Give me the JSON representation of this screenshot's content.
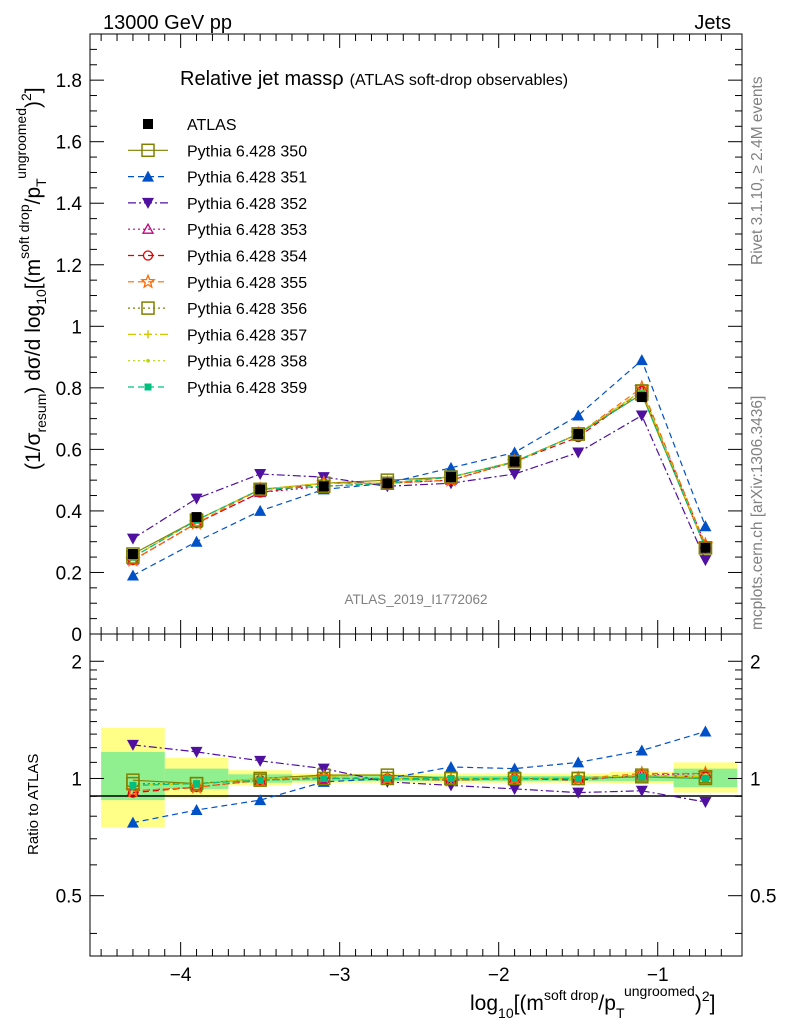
{
  "header": {
    "left": "13000 GeV pp",
    "right": "Jets"
  },
  "side_labels": {
    "rivet": "Rivet 3.1.10, ≥ 2.4M events",
    "mcplots": "mcplots.cern.ch [arXiv:1306.3436]"
  },
  "analysis_id": "ATLAS_2019_I1772062",
  "chart_data": [
    {
      "type": "line",
      "title": "Relative jet massρ",
      "subtitle": "(ATLAS soft-drop observables)",
      "ylabel": {
        "main": "(1/σ",
        "sub1": "resum",
        "mid": ") dσ/d log",
        "sub2": "10",
        "rest": "[(m",
        "sup1": "soft drop",
        "mid2": "/p",
        "sub3": "T",
        "sup2": "ungroomed",
        "end": ")",
        "sup3": "2",
        "close": "]"
      },
      "xlabel": {
        "main": "log",
        "sub": "10",
        "rest": "[(m",
        "sup1": "soft drop",
        "mid": "/p",
        "sub2": "T",
        "sup2": "ungroomed",
        "end": ")",
        "sup3": "2",
        "close": "]"
      },
      "xlim": [
        -4.57,
        -0.47
      ],
      "ylim": [
        0,
        1.95
      ],
      "yticks": [
        0,
        0.2,
        0.4,
        0.6,
        0.8,
        1,
        1.2,
        1.4,
        1.6,
        1.8
      ],
      "ytick_labels": [
        "0",
        "0.2",
        "0.4",
        "0.6",
        "0.8",
        "1",
        "1.2",
        "1.4",
        "1.6",
        "1.8"
      ],
      "x": [
        -4.3,
        -3.9,
        -3.5,
        -3.1,
        -2.7,
        -2.3,
        -1.9,
        -1.5,
        -1.1,
        -0.7
      ],
      "data": {
        "name": "ATLAS",
        "values": [
          0.26,
          0.38,
          0.47,
          0.48,
          0.49,
          0.51,
          0.56,
          0.65,
          0.77,
          0.28
        ],
        "color": "#000000"
      },
      "series": [
        {
          "name": "Pythia 6.428 350",
          "color": "#808000",
          "marker": "square-open",
          "dash": "solid",
          "values": [
            0.26,
            0.37,
            0.47,
            0.49,
            0.5,
            0.51,
            0.56,
            0.65,
            0.78,
            0.28
          ]
        },
        {
          "name": "Pythia 6.428 351",
          "color": "#0050c8",
          "marker": "triangle-up",
          "dash": "dashed",
          "values": [
            0.19,
            0.3,
            0.4,
            0.47,
            0.49,
            0.54,
            0.59,
            0.71,
            0.89,
            0.35
          ]
        },
        {
          "name": "Pythia 6.428 352",
          "color": "#5010a0",
          "marker": "triangle-down",
          "dash": "dashdot",
          "values": [
            0.31,
            0.44,
            0.52,
            0.51,
            0.48,
            0.49,
            0.52,
            0.59,
            0.71,
            0.24
          ]
        },
        {
          "name": "Pythia 6.428 353",
          "color": "#c00080",
          "marker": "triangle-open",
          "dash": "dotted",
          "values": [
            0.24,
            0.36,
            0.46,
            0.48,
            0.49,
            0.5,
            0.56,
            0.65,
            0.79,
            0.29
          ]
        },
        {
          "name": "Pythia 6.428 354",
          "color": "#e00000",
          "marker": "circle-open",
          "dash": "dashed",
          "values": [
            0.24,
            0.36,
            0.46,
            0.49,
            0.49,
            0.5,
            0.56,
            0.64,
            0.79,
            0.28
          ]
        },
        {
          "name": "Pythia 6.428 355",
          "color": "#ff6a00",
          "marker": "star-open",
          "dash": "dashed",
          "values": [
            0.24,
            0.36,
            0.47,
            0.49,
            0.49,
            0.5,
            0.56,
            0.65,
            0.8,
            0.29
          ]
        },
        {
          "name": "Pythia 6.428 356",
          "color": "#808000",
          "marker": "square-open",
          "dash": "dotted",
          "values": [
            0.25,
            0.37,
            0.47,
            0.48,
            0.49,
            0.51,
            0.56,
            0.65,
            0.79,
            0.28
          ]
        },
        {
          "name": "Pythia 6.428 357",
          "color": "#d8c800",
          "marker": "cross",
          "dash": "dashdot",
          "values": [
            0.25,
            0.37,
            0.47,
            0.49,
            0.49,
            0.51,
            0.56,
            0.65,
            0.79,
            0.28
          ]
        },
        {
          "name": "Pythia 6.428 358",
          "color": "#b8d800",
          "marker": "dot",
          "dash": "dotted",
          "values": [
            0.25,
            0.37,
            0.47,
            0.49,
            0.49,
            0.51,
            0.56,
            0.65,
            0.79,
            0.28
          ]
        },
        {
          "name": "Pythia 6.428 359",
          "color": "#00c080",
          "marker": "square",
          "dash": "dashed",
          "values": [
            0.25,
            0.37,
            0.47,
            0.48,
            0.49,
            0.51,
            0.56,
            0.65,
            0.78,
            0.28
          ]
        }
      ]
    },
    {
      "type": "line",
      "ylabel": "Ratio to ATLAS",
      "xlim": [
        -4.57,
        -0.47
      ],
      "ylim": [
        0.35,
        2.35
      ],
      "log_y": true,
      "yticks": [
        0.5,
        1,
        2
      ],
      "ytick_labels": [
        "0.5",
        "1",
        "2"
      ],
      "xticks": [
        -4,
        -3,
        -2,
        -1
      ],
      "xtick_labels": [
        "−4",
        "−3",
        "−2",
        "−1"
      ],
      "band_edges": [
        -4.5,
        -4.1,
        -3.7,
        -3.3,
        -2.9,
        -2.5,
        -2.1,
        -1.7,
        -1.3,
        -0.9,
        -0.5
      ],
      "band_inner": [
        [
          0.88,
          1.17
        ],
        [
          0.94,
          1.06
        ],
        [
          0.975,
          1.025
        ],
        [
          0.985,
          1.015
        ],
        [
          0.985,
          1.015
        ],
        [
          0.985,
          1.015
        ],
        [
          0.985,
          1.015
        ],
        [
          0.985,
          1.015
        ],
        [
          0.985,
          1.015
        ],
        [
          0.95,
          1.06
        ]
      ],
      "band_outer": [
        [
          0.75,
          1.35
        ],
        [
          0.89,
          1.13
        ],
        [
          0.96,
          1.05
        ],
        [
          0.975,
          1.03
        ],
        [
          0.975,
          1.03
        ],
        [
          0.975,
          1.03
        ],
        [
          0.975,
          1.03
        ],
        [
          0.975,
          1.03
        ],
        [
          0.97,
          1.04
        ],
        [
          0.92,
          1.1
        ]
      ],
      "band_colors": {
        "inner": "#90f090",
        "outer": "#ffff88"
      },
      "series_ratios": [
        [
          0.99,
          0.97,
          1.0,
          1.02,
          1.02,
          1.0,
          1.0,
          1.0,
          1.01,
          1.0
        ],
        [
          0.77,
          0.83,
          0.88,
          0.98,
          1.0,
          1.07,
          1.06,
          1.1,
          1.18,
          1.32
        ],
        [
          1.22,
          1.17,
          1.11,
          1.06,
          0.98,
          0.96,
          0.94,
          0.92,
          0.93,
          0.87
        ],
        [
          0.93,
          0.95,
          0.99,
          1.0,
          1.0,
          0.99,
          1.0,
          1.0,
          1.02,
          1.03
        ],
        [
          0.92,
          0.95,
          0.99,
          1.01,
          1.0,
          0.99,
          1.0,
          0.99,
          1.02,
          1.01
        ],
        [
          0.93,
          0.95,
          0.99,
          1.01,
          1.0,
          0.99,
          1.0,
          1.0,
          1.03,
          1.03
        ],
        [
          0.97,
          0.97,
          0.99,
          1.0,
          1.0,
          1.0,
          1.0,
          1.0,
          1.02,
          1.01
        ],
        [
          0.96,
          0.97,
          1.0,
          1.01,
          1.0,
          1.0,
          1.0,
          1.0,
          1.02,
          1.01
        ],
        [
          0.96,
          0.97,
          1.0,
          1.01,
          1.0,
          1.0,
          1.0,
          1.0,
          1.02,
          1.01
        ],
        [
          0.96,
          0.97,
          0.99,
          1.0,
          1.0,
          1.0,
          1.0,
          1.0,
          1.01,
          1.0
        ]
      ]
    }
  ]
}
